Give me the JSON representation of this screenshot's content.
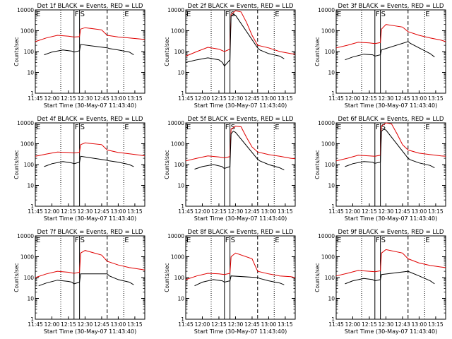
{
  "chart_data": {
    "type": "line",
    "x_unit": "time (HH:MM)",
    "xlim": [
      "11:45",
      "13:24"
    ],
    "ylim": [
      1,
      10000
    ],
    "y_scale": "log",
    "grid": false,
    "ylabel": "Counts/sec",
    "x_tick_labels": [
      "11:45",
      "12:00",
      "12:15",
      "12:30",
      "12:45",
      "13:00",
      "13:15"
    ],
    "y_tick_labels": [
      "1",
      "10",
      "100",
      "1000",
      "10000"
    ],
    "x_tick_labels_row3_alt": [
      "11:45",
      "12:00",
      "12:15",
      "12:30",
      "12:43",
      "13:00",
      "13:15"
    ],
    "marker_lines": [
      {
        "label": "E",
        "time": "11:45",
        "style": "dotted"
      },
      {
        "label": "",
        "time": "12:08",
        "style": "dotted"
      },
      {
        "label": "F",
        "time": "12:20",
        "style": "solid"
      },
      {
        "label": "S",
        "time": "12:25",
        "style": "solid"
      },
      {
        "label": "",
        "time": "12:50",
        "style": "dashed"
      },
      {
        "label": "E",
        "time": "13:05",
        "style": "dotted"
      }
    ],
    "series_colors": {
      "events": "#000000",
      "lld": "#e00000"
    },
    "panels": [
      {
        "title": "Det 1f BLACK = Events, RED = LLD",
        "xlabel": "Start Time (30-May-07 11:43:40)",
        "events": {
          "x": [
            "11:53",
            "12:00",
            "12:10",
            "12:18",
            "12:19",
            "12:20",
            "12:25",
            "12:26",
            "12:50",
            "12:52",
            "13:00",
            "13:10",
            "13:14"
          ],
          "y": [
            70,
            95,
            120,
            105,
            100,
            95,
            110,
            220,
            150,
            140,
            120,
            95,
            70
          ]
        },
        "lld": {
          "x": [
            "11:45",
            "11:55",
            "12:05",
            "12:15",
            "12:20",
            "12:25",
            "12:26",
            "12:30",
            "12:45",
            "12:50",
            "13:00",
            "13:10",
            "13:20",
            "13:24"
          ],
          "y": [
            300,
            450,
            600,
            550,
            500,
            520,
            1200,
            1400,
            1100,
            600,
            500,
            450,
            400,
            380
          ]
        }
      },
      {
        "title": "Det 2f BLACK = Events, RED = LLD",
        "xlabel": "Start Time (30-May-07 11:43:40)",
        "events": {
          "x": [
            "11:45",
            "11:55",
            "12:05",
            "12:15",
            "12:18",
            "12:19",
            "12:20",
            "12:25",
            "12:26",
            "12:28",
            "12:30",
            "12:50",
            "12:52",
            "13:00",
            "13:10",
            "13:14"
          ],
          "y": [
            30,
            40,
            50,
            40,
            30,
            25,
            20,
            40,
            5000,
            6000,
            5500,
            150,
            120,
            80,
            60,
            45
          ]
        },
        "lld": {
          "x": [
            "11:45",
            "11:55",
            "12:05",
            "12:15",
            "12:20",
            "12:25",
            "12:26",
            "12:30",
            "12:35",
            "12:40",
            "12:45",
            "12:50",
            "13:00",
            "13:10",
            "13:20",
            "13:24"
          ],
          "y": [
            60,
            100,
            160,
            130,
            100,
            130,
            6000,
            9000,
            8000,
            2500,
            600,
            200,
            150,
            100,
            80,
            75
          ]
        }
      },
      {
        "title": "Det 3f BLACK = Events, RED = LLD",
        "xlabel": "Start Time (30-May-07 11:43:40)",
        "events": {
          "x": [
            "11:53",
            "12:00",
            "12:10",
            "12:18",
            "12:19",
            "12:20",
            "12:25",
            "12:26",
            "12:50",
            "12:52",
            "13:00",
            "13:10",
            "13:14"
          ],
          "y": [
            40,
            55,
            75,
            70,
            65,
            60,
            70,
            120,
            300,
            250,
            150,
            80,
            55
          ]
        },
        "lld": {
          "x": [
            "11:45",
            "11:55",
            "12:05",
            "12:15",
            "12:20",
            "12:25",
            "12:26",
            "12:30",
            "12:45",
            "12:50",
            "13:00",
            "13:10",
            "13:20",
            "13:24"
          ],
          "y": [
            150,
            200,
            280,
            260,
            240,
            270,
            1200,
            2000,
            1500,
            900,
            600,
            450,
            350,
            300
          ]
        }
      },
      {
        "title": "Det 4f BLACK = Events, RED = LLD",
        "xlabel": "Start Time (30-May-07 11:43:40)",
        "events": {
          "x": [
            "11:53",
            "12:00",
            "12:10",
            "12:18",
            "12:19",
            "12:20",
            "12:25",
            "12:26",
            "12:50",
            "12:52",
            "13:00",
            "13:10",
            "13:14"
          ],
          "y": [
            80,
            110,
            140,
            120,
            115,
            110,
            130,
            250,
            160,
            150,
            130,
            100,
            80
          ]
        },
        "lld": {
          "x": [
            "11:45",
            "11:55",
            "12:05",
            "12:15",
            "12:20",
            "12:25",
            "12:26",
            "12:30",
            "12:45",
            "12:50",
            "13:00",
            "13:10",
            "13:20",
            "13:24"
          ],
          "y": [
            250,
            320,
            400,
            380,
            360,
            390,
            900,
            1100,
            900,
            500,
            380,
            330,
            280,
            260
          ]
        }
      },
      {
        "title": "Det 5f BLACK = Events, RED = LLD",
        "xlabel": "Start Time (30-May-07 11:43:40)",
        "events": {
          "x": [
            "11:53",
            "12:00",
            "12:10",
            "12:18",
            "12:19",
            "12:20",
            "12:25",
            "12:26",
            "12:28",
            "12:30",
            "12:50",
            "12:52",
            "13:00",
            "13:10",
            "13:14"
          ],
          "y": [
            60,
            80,
            100,
            80,
            70,
            65,
            80,
            3000,
            4000,
            3500,
            180,
            150,
            100,
            70,
            55
          ]
        },
        "lld": {
          "x": [
            "11:45",
            "11:55",
            "12:05",
            "12:15",
            "12:20",
            "12:25",
            "12:26",
            "12:30",
            "12:35",
            "12:40",
            "12:45",
            "12:50",
            "13:00",
            "13:10",
            "13:20",
            "13:24"
          ],
          "y": [
            150,
            200,
            260,
            230,
            210,
            240,
            5000,
            7000,
            6500,
            2000,
            700,
            400,
            300,
            250,
            200,
            190
          ]
        }
      },
      {
        "title": "Det 6f BLACK = Events, RED = LLD",
        "xlabel": "Start Time (30-May-07 11:43:40)",
        "events": {
          "x": [
            "11:53",
            "12:00",
            "12:10",
            "12:18",
            "12:19",
            "12:20",
            "12:25",
            "12:26",
            "12:28",
            "12:30",
            "12:50",
            "12:52",
            "13:00",
            "13:10",
            "13:14"
          ],
          "y": [
            80,
            110,
            140,
            130,
            120,
            115,
            130,
            4000,
            5000,
            4500,
            200,
            170,
            120,
            90,
            70
          ]
        },
        "lld": {
          "x": [
            "11:45",
            "11:55",
            "12:05",
            "12:15",
            "12:20",
            "12:25",
            "12:26",
            "12:30",
            "12:35",
            "12:40",
            "12:45",
            "12:50",
            "13:00",
            "13:10",
            "13:20",
            "13:24"
          ],
          "y": [
            150,
            200,
            280,
            260,
            250,
            280,
            7000,
            10000,
            9000,
            3000,
            900,
            500,
            350,
            300,
            260,
            250
          ]
        }
      },
      {
        "title": "Det 7f BLACK = Events, RED = LLD",
        "xlabel": "Start Time (30-May-07 11:43:40)",
        "events": {
          "x": [
            "11:48",
            "11:55",
            "12:05",
            "12:15",
            "12:18",
            "12:19",
            "12:20",
            "12:25",
            "12:26",
            "12:50",
            "12:52",
            "13:00",
            "13:10",
            "13:14"
          ],
          "y": [
            40,
            55,
            75,
            65,
            60,
            55,
            50,
            60,
            150,
            150,
            120,
            80,
            60,
            45
          ]
        },
        "lld": {
          "x": [
            "11:45",
            "11:55",
            "12:05",
            "12:15",
            "12:20",
            "12:25",
            "12:26",
            "12:30",
            "12:45",
            "12:50",
            "13:00",
            "13:10",
            "13:20",
            "13:24"
          ],
          "y": [
            100,
            150,
            200,
            180,
            160,
            180,
            1500,
            2000,
            1200,
            600,
            400,
            300,
            250,
            230
          ]
        }
      },
      {
        "title": "Det 8f BLACK = Events, RED = LLD",
        "xlabel": "Start Time (30-May-07 11:43:40)",
        "events": {
          "x": [
            "11:53",
            "12:00",
            "12:10",
            "12:18",
            "12:19",
            "12:20",
            "12:25",
            "12:26",
            "12:50",
            "12:52",
            "13:00",
            "13:10",
            "13:14"
          ],
          "y": [
            40,
            60,
            80,
            70,
            65,
            60,
            70,
            120,
            100,
            90,
            70,
            55,
            45
          ]
        },
        "lld": {
          "x": [
            "11:45",
            "11:55",
            "12:05",
            "12:15",
            "12:20",
            "12:25",
            "12:26",
            "12:30",
            "12:45",
            "12:50",
            "13:00",
            "13:10",
            "13:20",
            "13:24"
          ],
          "y": [
            80,
            120,
            160,
            150,
            140,
            160,
            1000,
            1500,
            800,
            200,
            150,
            120,
            110,
            100
          ]
        }
      },
      {
        "title": "Det 9f BLACK = Events, RED = LLD",
        "xlabel": "Start Time (30-May-07 11:43:40)",
        "events": {
          "x": [
            "11:53",
            "12:00",
            "12:10",
            "12:18",
            "12:19",
            "12:20",
            "12:25",
            "12:26",
            "12:50",
            "12:52",
            "13:00",
            "13:10",
            "13:14"
          ],
          "y": [
            50,
            70,
            90,
            80,
            75,
            70,
            80,
            140,
            200,
            180,
            120,
            70,
            50
          ]
        },
        "lld": {
          "x": [
            "11:45",
            "11:55",
            "12:05",
            "12:15",
            "12:20",
            "12:25",
            "12:26",
            "12:30",
            "12:45",
            "12:50",
            "13:00",
            "13:10",
            "13:20",
            "13:24"
          ],
          "y": [
            120,
            160,
            220,
            200,
            190,
            210,
            1500,
            2200,
            1500,
            800,
            500,
            380,
            320,
            300
          ]
        }
      }
    ]
  }
}
